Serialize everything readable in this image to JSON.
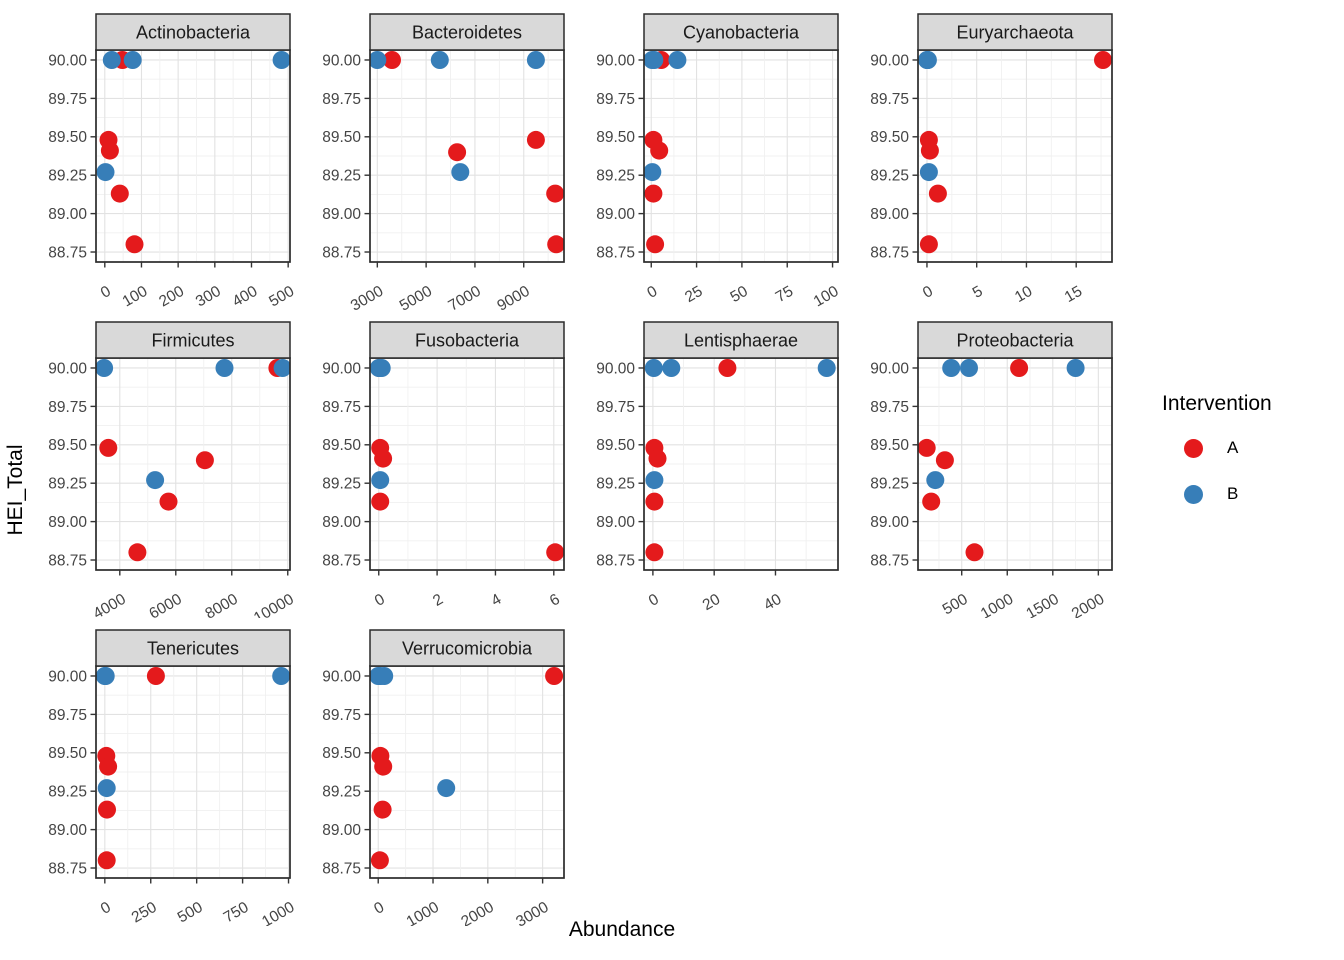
{
  "axis": {
    "x_label": "Abundance",
    "y_label": "HEI_Total"
  },
  "legend": {
    "title": "Intervention",
    "items": [
      {
        "label": "A",
        "color": "#E41A1C"
      },
      {
        "label": "B",
        "color": "#377EB8"
      }
    ]
  },
  "style": {
    "strip_fill": "#D9D9D9",
    "strip_border": "#2B2B2B",
    "panel_fill": "#FFFFFF",
    "panel_border": "#2B2B2B",
    "grid_major": "#E2E2E2",
    "grid_minor": "#F0F0F0",
    "tick_mark_color": "#333333",
    "tick_label_color": "#454545",
    "strip_text_color": "#1A1A1A",
    "point_radius": 9
  },
  "chart_data": {
    "type": "scatter",
    "title": "",
    "xlabel": "Abundance",
    "ylabel": "HEI_Total",
    "legend_position": "right",
    "grid": true,
    "y_axis": {
      "ylim": [
        88.685,
        90.065
      ],
      "ticks": [
        90.0,
        89.75,
        89.5,
        89.25,
        89.0,
        88.75
      ],
      "labels": [
        "90.00",
        "89.75",
        "89.50",
        "89.25",
        "89.00",
        "88.75"
      ]
    },
    "series_colors": {
      "A": "#E41A1C",
      "B": "#377EB8"
    },
    "facets": [
      {
        "title": "Actinobacteria",
        "xlim": [
          -24,
          505
        ],
        "x_ticks": [
          0,
          100,
          200,
          300,
          400,
          500
        ],
        "points": {
          "A": [
            [
              48,
              90.0
            ],
            [
              10,
              89.48
            ],
            [
              14,
              89.41
            ],
            [
              41,
              89.13
            ],
            [
              81,
              88.8
            ]
          ],
          "B": [
            [
              19,
              90.0
            ],
            [
              76,
              90.0
            ],
            [
              482,
              90.0
            ],
            [
              2,
              89.27
            ]
          ]
        }
      },
      {
        "title": "Bacteroidetes",
        "xlim": [
          2700,
          10650
        ],
        "x_ticks": [
          3000,
          5000,
          7000,
          9000
        ],
        "points": {
          "A": [
            [
              3600,
              90.0
            ],
            [
              9500,
              89.48
            ],
            [
              6270,
              89.4
            ],
            [
              10290,
              89.13
            ],
            [
              10330,
              88.8
            ]
          ],
          "B": [
            [
              3000,
              90.0
            ],
            [
              5560,
              90.0
            ],
            [
              9500,
              90.0
            ],
            [
              6400,
              89.27
            ]
          ]
        }
      },
      {
        "title": "Cyanobacteria",
        "xlim": [
          -4,
          103
        ],
        "x_ticks": [
          0,
          25,
          50,
          75,
          100
        ],
        "points": {
          "A": [
            [
              5.5,
              90.0
            ],
            [
              1.2,
              89.48
            ],
            [
              4.4,
              89.41
            ],
            [
              1.2,
              89.13
            ],
            [
              2.1,
              88.8
            ]
          ],
          "B": [
            [
              0.5,
              90.0
            ],
            [
              1.7,
              90.0
            ],
            [
              14.4,
              90.0
            ],
            [
              0.6,
              89.27
            ]
          ]
        }
      },
      {
        "title": "Euryarchaeota",
        "xlim": [
          -0.9,
          18.6
        ],
        "x_ticks": [
          0,
          5,
          10,
          15
        ],
        "points": {
          "A": [
            [
              17.7,
              90.0
            ],
            [
              0.2,
              89.48
            ],
            [
              0.3,
              89.41
            ],
            [
              1.1,
              89.13
            ],
            [
              0.2,
              88.8
            ]
          ],
          "B": [
            [
              0.0,
              90.0
            ],
            [
              0.05,
              90.0
            ],
            [
              0.1,
              90.0
            ],
            [
              0.2,
              89.27
            ]
          ]
        }
      },
      {
        "title": "Firmicutes",
        "xlim": [
          3150,
          10080
        ],
        "x_ticks": [
          4000,
          6000,
          8000,
          10000
        ],
        "points": {
          "A": [
            [
              9630,
              90.0
            ],
            [
              3590,
              89.48
            ],
            [
              7040,
              89.4
            ],
            [
              5740,
              89.13
            ],
            [
              4630,
              88.8
            ]
          ],
          "B": [
            [
              3440,
              90.0
            ],
            [
              7740,
              90.0
            ],
            [
              9815,
              90.0
            ],
            [
              5260,
              89.27
            ]
          ]
        }
      },
      {
        "title": "Fusobacteria",
        "xlim": [
          -0.3,
          6.35
        ],
        "x_ticks": [
          0,
          2,
          4,
          6
        ],
        "points": {
          "A": [
            [
              0.02,
              90.0
            ],
            [
              0.05,
              89.48
            ],
            [
              0.15,
              89.41
            ],
            [
              0.05,
              89.13
            ],
            [
              6.05,
              88.8
            ]
          ],
          "B": [
            [
              0.0,
              90.0
            ],
            [
              0.05,
              90.0
            ],
            [
              0.1,
              90.0
            ],
            [
              0.05,
              89.27
            ]
          ]
        }
      },
      {
        "title": "Lentisphaerae",
        "xlim": [
          -2.9,
          60.4
        ],
        "x_ticks": [
          0,
          20,
          40
        ],
        "points": {
          "A": [
            [
              24.3,
              90.0
            ],
            [
              0.5,
              89.48
            ],
            [
              1.5,
              89.41
            ],
            [
              0.5,
              89.13
            ],
            [
              0.5,
              88.8
            ]
          ],
          "B": [
            [
              0.3,
              90.0
            ],
            [
              6,
              90.0
            ],
            [
              56.7,
              90.0
            ],
            [
              0.5,
              89.27
            ]
          ]
        }
      },
      {
        "title": "Proteobacteria",
        "xlim": [
          20,
          2150
        ],
        "x_ticks": [
          500,
          1000,
          1500,
          2000
        ],
        "points": {
          "A": [
            [
              1130,
              90.0
            ],
            [
              115,
              89.48
            ],
            [
              315,
              89.4
            ],
            [
              165,
              89.13
            ],
            [
              640,
              88.8
            ]
          ],
          "B": [
            [
              385,
              90.0
            ],
            [
              580,
              90.0
            ],
            [
              1750,
              90.0
            ],
            [
              210,
              89.27
            ]
          ]
        }
      },
      {
        "title": "Tenericutes",
        "xlim": [
          -48,
          1008
        ],
        "x_ticks": [
          0,
          250,
          500,
          750,
          1000
        ],
        "points": {
          "A": [
            [
              278,
              90.0
            ],
            [
              8,
              89.48
            ],
            [
              18,
              89.41
            ],
            [
              12,
              89.13
            ],
            [
              10,
              88.8
            ]
          ],
          "B": [
            [
              0,
              90.0
            ],
            [
              5,
              90.0
            ],
            [
              960,
              90.0
            ],
            [
              10,
              89.27
            ]
          ]
        }
      },
      {
        "title": "Verrucomicrobia",
        "xlim": [
          -150,
          3390
        ],
        "x_ticks": [
          0,
          1000,
          2000,
          3000
        ],
        "points": {
          "A": [
            [
              3210,
              90.0
            ],
            [
              40,
              89.48
            ],
            [
              90,
              89.41
            ],
            [
              80,
              89.13
            ],
            [
              30,
              88.8
            ]
          ],
          "B": [
            [
              0,
              90.0
            ],
            [
              40,
              90.0
            ],
            [
              110,
              90.0
            ],
            [
              1240,
              89.27
            ]
          ]
        }
      }
    ]
  }
}
